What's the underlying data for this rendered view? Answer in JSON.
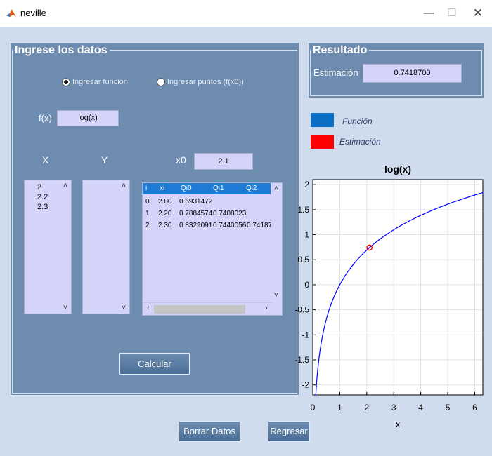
{
  "window": {
    "title": "neville",
    "minimize": "—",
    "maximize": "☐",
    "close": "✕"
  },
  "input_panel": {
    "title": "Ingrese los datos",
    "radio_function": "Ingresar función",
    "radio_points": "Ingresar puntos (f(x0))",
    "selected_mode": "Ingresar función",
    "fx_label": "f(x)",
    "fx_value": "log(x)",
    "x_header": "X",
    "y_header": "Y",
    "x0_label": "x0",
    "x0_value": "2.1",
    "x_values": [
      "2",
      "2.2",
      "2.3"
    ],
    "y_values": [],
    "calc_button": "Calcular"
  },
  "table": {
    "headers": [
      "i",
      "xi",
      "Qi0",
      "Qi1",
      "Qi2"
    ],
    "rows": [
      [
        "0",
        "2.00",
        "0.6931472",
        "",
        ""
      ],
      [
        "1",
        "2.20",
        "0.7884574",
        "0.7408023",
        ""
      ],
      [
        "2",
        "2.30",
        "0.8329091",
        "0.7440056",
        "0.74187"
      ]
    ]
  },
  "result_panel": {
    "title": "Resultado",
    "label": "Estimación",
    "value": "0.7418700"
  },
  "legend": {
    "items": [
      {
        "label": "Función",
        "color": "#0a6fc4"
      },
      {
        "label": "Estimación",
        "color": "#ff0000"
      }
    ]
  },
  "chart_data": {
    "type": "line",
    "title": "log(x)",
    "xlabel": "x",
    "ylabel": "",
    "xlim": [
      0,
      6.3
    ],
    "ylim": [
      -2.2,
      2.1
    ],
    "xticks": [
      0,
      1,
      2,
      3,
      4,
      5,
      6
    ],
    "yticks": [
      -2,
      -1.5,
      -1,
      -0.5,
      0,
      0.5,
      1,
      1.5,
      2
    ],
    "ytick_labels": [
      "-2",
      "-1.5",
      "-1",
      "-0.5",
      "0",
      "0.5",
      "1",
      "1.5",
      "2"
    ],
    "grid": true,
    "series": [
      {
        "function": "log(x)",
        "x_start": 0.11,
        "x_end": 6.3,
        "color": "#0000ff"
      }
    ],
    "point": {
      "x": 2.1,
      "y": 0.74187,
      "color": "#ff0000"
    }
  },
  "buttons": {
    "clear": "Borrar Datos",
    "back": "Regresar"
  }
}
